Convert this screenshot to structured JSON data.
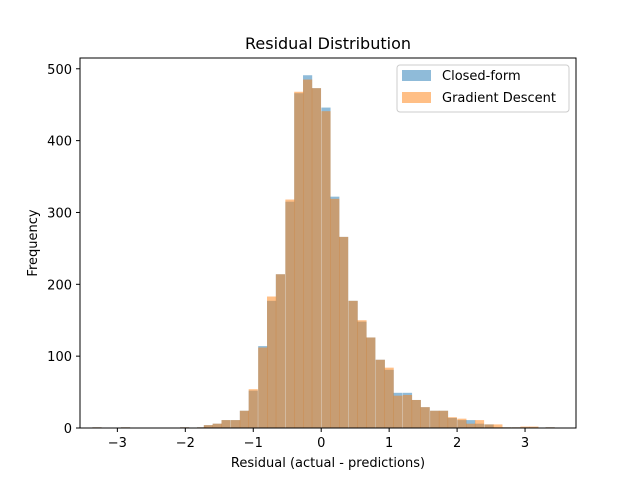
{
  "chart_data": {
    "type": "bar",
    "title": "Residual Distribution",
    "xlabel": "Residual (actual - predictions)",
    "ylabel": "Frequency",
    "xlim": [
      -3.55,
      3.75
    ],
    "ylim": [
      0,
      515
    ],
    "xticks": [
      -3,
      -2,
      -1,
      0,
      1,
      2,
      3
    ],
    "yticks": [
      0,
      100,
      200,
      300,
      400,
      500
    ],
    "grid": false,
    "legend_position": "top-right",
    "bin_width": 0.135,
    "series": [
      {
        "name": "Closed-form",
        "color": "#1f77b4",
        "opacity": 0.5,
        "bins": [
          [
            -3.3,
            1
          ],
          [
            -2.88,
            1
          ],
          [
            -2.01,
            1
          ],
          [
            -1.76,
            1
          ],
          [
            -1.66,
            4
          ],
          [
            -1.53,
            6
          ],
          [
            -1.4,
            11
          ],
          [
            -1.26,
            11
          ],
          [
            -1.13,
            24
          ],
          [
            -1.0,
            52
          ],
          [
            -0.86,
            114
          ],
          [
            -0.73,
            177
          ],
          [
            -0.6,
            214
          ],
          [
            -0.46,
            315
          ],
          [
            -0.33,
            466
          ],
          [
            -0.2,
            491
          ],
          [
            -0.07,
            473
          ],
          [
            0.07,
            446
          ],
          [
            0.2,
            322
          ],
          [
            0.33,
            266
          ],
          [
            0.47,
            177
          ],
          [
            0.6,
            148
          ],
          [
            0.73,
            126
          ],
          [
            0.87,
            95
          ],
          [
            1.0,
            81
          ],
          [
            1.13,
            49
          ],
          [
            1.27,
            49
          ],
          [
            1.4,
            39
          ],
          [
            1.53,
            29
          ],
          [
            1.67,
            24
          ],
          [
            1.8,
            24
          ],
          [
            1.93,
            14
          ],
          [
            2.07,
            11
          ],
          [
            2.2,
            11
          ],
          [
            2.33,
            6
          ],
          [
            2.47,
            5
          ],
          [
            2.6,
            1
          ],
          [
            2.73,
            1
          ],
          [
            2.87,
            1
          ],
          [
            3.0,
            1
          ],
          [
            3.13,
            1
          ],
          [
            3.37,
            1
          ]
        ]
      },
      {
        "name": "Gradient Descent",
        "color": "#ff7f0e",
        "opacity": 0.5,
        "bins": [
          [
            -3.3,
            1
          ],
          [
            -2.88,
            1
          ],
          [
            -2.01,
            1
          ],
          [
            -1.76,
            1
          ],
          [
            -1.66,
            4
          ],
          [
            -1.53,
            6
          ],
          [
            -1.4,
            11
          ],
          [
            -1.26,
            11
          ],
          [
            -1.13,
            24
          ],
          [
            -1.0,
            54
          ],
          [
            -0.86,
            112
          ],
          [
            -0.73,
            183
          ],
          [
            -0.6,
            214
          ],
          [
            -0.46,
            318
          ],
          [
            -0.33,
            468
          ],
          [
            -0.2,
            485
          ],
          [
            -0.07,
            473
          ],
          [
            0.07,
            441
          ],
          [
            0.2,
            319
          ],
          [
            0.33,
            266
          ],
          [
            0.47,
            177
          ],
          [
            0.6,
            150
          ],
          [
            0.73,
            126
          ],
          [
            0.87,
            95
          ],
          [
            1.0,
            84
          ],
          [
            1.13,
            45
          ],
          [
            1.27,
            46
          ],
          [
            1.4,
            39
          ],
          [
            1.53,
            29
          ],
          [
            1.67,
            24
          ],
          [
            1.8,
            24
          ],
          [
            1.93,
            15
          ],
          [
            2.07,
            13
          ],
          [
            2.2,
            6
          ],
          [
            2.33,
            11
          ],
          [
            2.47,
            5
          ],
          [
            2.6,
            5
          ],
          [
            2.73,
            1
          ],
          [
            2.87,
            1
          ],
          [
            3.0,
            2
          ],
          [
            3.13,
            2
          ],
          [
            3.37,
            1
          ]
        ]
      }
    ]
  }
}
